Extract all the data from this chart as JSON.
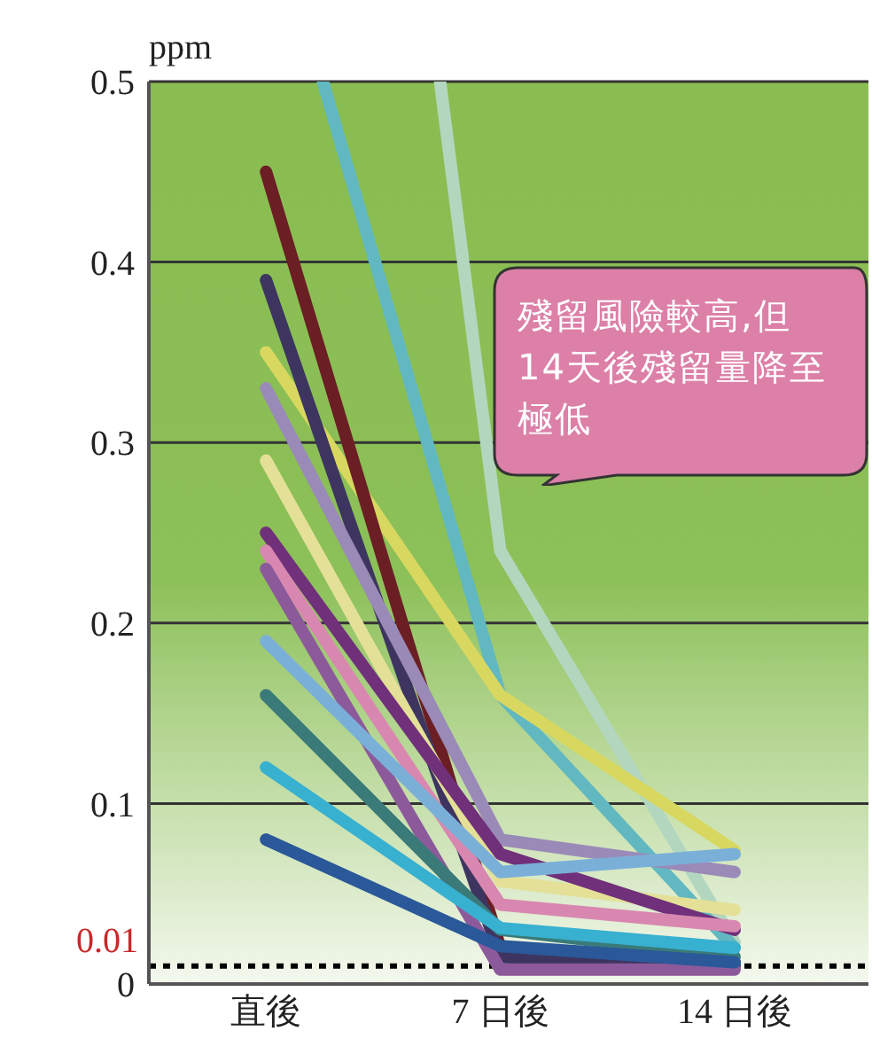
{
  "chart_data": {
    "type": "line",
    "ylabel": "ppm",
    "xlim": [
      -3.5,
      18
    ],
    "xticks": [
      {
        "value": 0,
        "label": "直後"
      },
      {
        "value": 7,
        "label": "7 日後"
      },
      {
        "value": 14,
        "label": "14 日後"
      }
    ],
    "ylim": [
      0,
      0.5
    ],
    "yticks": [
      0,
      0.1,
      0.2,
      0.3,
      0.4,
      0.5
    ],
    "grid": "y",
    "legend": false,
    "marker": "none",
    "line_style": "solid",
    "ref_lines": [
      {
        "axis": "y",
        "value": 0.01,
        "label": "0.01",
        "color": "#000000",
        "line_style": "dotted"
      }
    ],
    "annotations": [
      "殘留風險較高,但14天後殘留量降至極低"
    ],
    "series": [
      {
        "color": "#b3d6bf",
        "x": [
          5.2,
          7,
          14
        ],
        "values": [
          0.5,
          0.24,
          0.023
        ]
      },
      {
        "color": "#62b8c0",
        "x": [
          1.7,
          7,
          14
        ],
        "values": [
          0.5,
          0.16,
          0.02
        ]
      },
      {
        "color": "#d8d860",
        "x": [
          0,
          7,
          14
        ],
        "values": [
          0.35,
          0.16,
          0.074
        ]
      },
      {
        "color": "#6b1e24",
        "x": [
          0,
          7,
          14
        ],
        "values": [
          0.45,
          0.02,
          0.012
        ]
      },
      {
        "color": "#3d3560",
        "x": [
          0,
          7,
          14
        ],
        "values": [
          0.39,
          0.015,
          0.01
        ]
      },
      {
        "color": "#9a8ab8",
        "x": [
          0,
          7,
          14
        ],
        "values": [
          0.33,
          0.08,
          0.062
        ]
      },
      {
        "color": "#e4e098",
        "x": [
          0,
          7,
          14
        ],
        "values": [
          0.29,
          0.057,
          0.041
        ]
      },
      {
        "color": "#70307a",
        "x": [
          0,
          7,
          14
        ],
        "values": [
          0.25,
          0.072,
          0.03
        ]
      },
      {
        "color": "#d888b0",
        "x": [
          0,
          7,
          14
        ],
        "values": [
          0.24,
          0.044,
          0.032
        ]
      },
      {
        "color": "#8c5a9a",
        "x": [
          0,
          7,
          14
        ],
        "values": [
          0.23,
          0.008,
          0.008
        ]
      },
      {
        "color": "#7ab0d8",
        "x": [
          0,
          7,
          14
        ],
        "values": [
          0.19,
          0.062,
          0.072
        ]
      },
      {
        "color": "#3a7a78",
        "x": [
          0,
          7,
          14
        ],
        "values": [
          0.16,
          0.03,
          0.015
        ]
      },
      {
        "color": "#38b0d0",
        "x": [
          0,
          7,
          14
        ],
        "values": [
          0.12,
          0.031,
          0.02
        ]
      },
      {
        "color": "#2a5898",
        "x": [
          0,
          7,
          14
        ],
        "values": [
          0.08,
          0.021,
          0.012
        ]
      }
    ]
  }
}
